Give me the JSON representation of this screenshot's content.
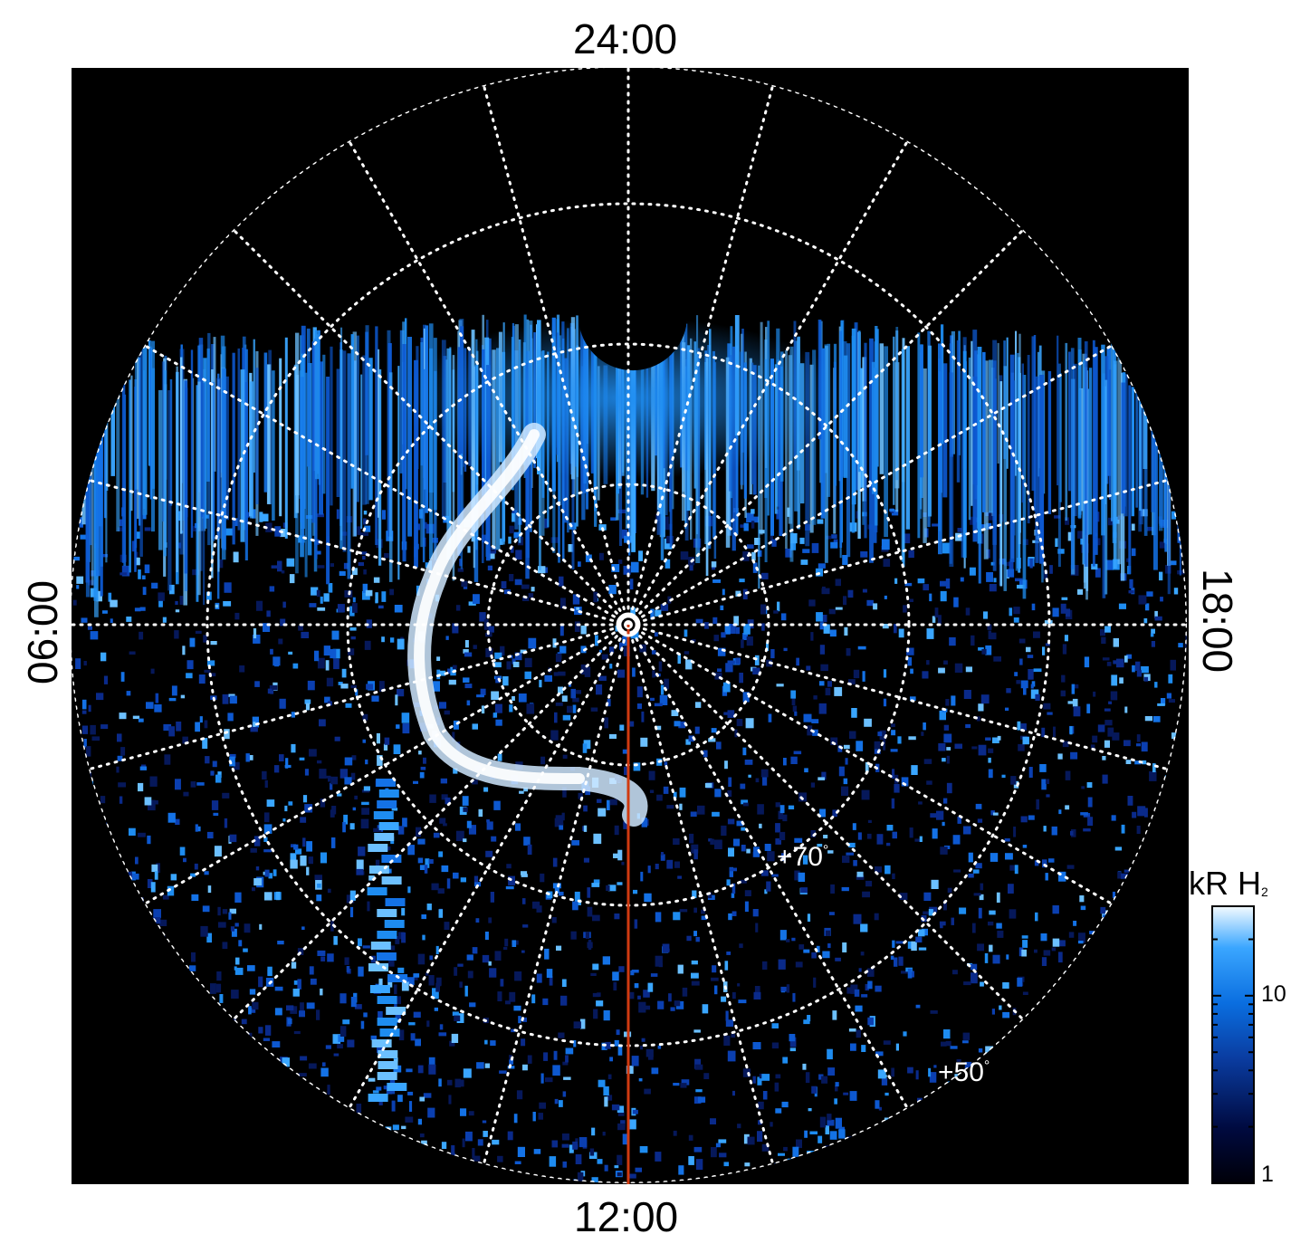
{
  "local_time_labels": {
    "top": "24:00",
    "bottom": "12:00",
    "left": "06:00",
    "right": "18:00"
  },
  "latitude_labels": {
    "inner": "+70",
    "outer": "+50",
    "degree_symbol": "°"
  },
  "colorbar": {
    "title_main": "kR H",
    "title_sub": "2",
    "tick_labels": [
      "10",
      "1"
    ],
    "color_min": "#000010",
    "color_mid": "#0a6ee0",
    "color_max": "#f4fbff"
  },
  "colors": {
    "background": "#000000",
    "aurora_blue": "#1e8cf0",
    "aurora_bright": "#f0f8ff",
    "grid": "#ffffff",
    "meridian_line": "#d03a10"
  }
}
